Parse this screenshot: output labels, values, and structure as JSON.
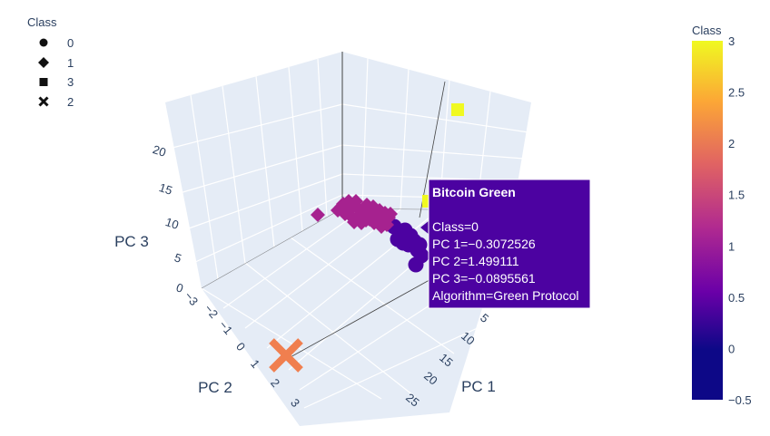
{
  "chart_data": {
    "type": "scatter3d",
    "legend": {
      "title": "Class",
      "entries": [
        {
          "label": "0",
          "symbol": "circle"
        },
        {
          "label": "1",
          "symbol": "diamond"
        },
        {
          "label": "3",
          "symbol": "square"
        },
        {
          "label": "2",
          "symbol": "x"
        }
      ],
      "placement": "top-left"
    },
    "axes": {
      "x": {
        "title": "PC 1",
        "ticks": [
          "5",
          "10",
          "15",
          "20",
          "25"
        ]
      },
      "y": {
        "title": "PC 2",
        "ticks": [
          "−3",
          "−2",
          "−1",
          "0",
          "1",
          "2",
          "3"
        ]
      },
      "z": {
        "title": "PC 3",
        "ticks": [
          "0",
          "5",
          "10",
          "15",
          "20"
        ]
      }
    },
    "colorbar": {
      "title": "Class",
      "min": -0.5,
      "max": 3,
      "ticks": [
        "3",
        "2.5",
        "2",
        "1.5",
        "1",
        "0.5",
        "0",
        "−0.5"
      ],
      "colors": {
        "top": "#f0f921",
        "upper": "#fca636",
        "mid_upper": "#e16462",
        "mid": "#b12a90",
        "mid_lower": "#6a00a8",
        "bottom": "#0d0887"
      }
    },
    "series": [
      {
        "name": "0",
        "symbol": "circle",
        "color": "#4c02a1",
        "count": 12
      },
      {
        "name": "1",
        "symbol": "diamond",
        "color": "#a6228f",
        "count": 30
      },
      {
        "name": "3",
        "symbol": "square",
        "color": "#f0f921",
        "count": 2
      },
      {
        "name": "2",
        "symbol": "x",
        "color": "#f07f4f",
        "count": 1
      }
    ],
    "hover": {
      "title": "Bitcoin Green",
      "lines": [
        "Class=0",
        "PC 1=−0.3072526",
        "PC 2=1.499111",
        "PC 3=−0.0895561",
        "Algorithm=Green Protocol"
      ],
      "bg": "#4c02a1"
    }
  }
}
